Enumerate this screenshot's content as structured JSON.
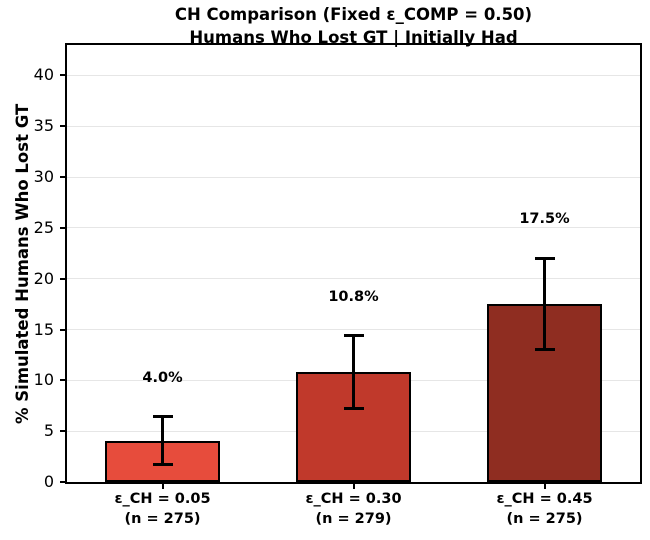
{
  "title": {
    "line1": "CH Comparison (Fixed ε_COMP = 0.50)",
    "line2": "Humans Who Lost GT | Initially Had"
  },
  "chart_data": {
    "type": "bar",
    "title": "CH Comparison (Fixed ε_COMP = 0.50)\nHumans Who Lost GT | Initially Had",
    "xlabel": "",
    "ylabel": "% Simulated Humans Who Lost GT",
    "ylim": [
      0,
      43
    ],
    "yticks": [
      0,
      5,
      10,
      15,
      20,
      25,
      30,
      35,
      40
    ],
    "grid": "horizontal",
    "grid_color": "#e6e6e6",
    "categories": [
      {
        "line1": "ε_CH = 0.05",
        "line2": "(n = 275)"
      },
      {
        "line1": "ε_CH = 0.30",
        "line2": "(n = 279)"
      },
      {
        "line1": "ε_CH = 0.45",
        "line2": "(n = 275)"
      }
    ],
    "values": [
      4.0,
      10.8,
      17.5
    ],
    "value_labels": [
      "4.0%",
      "10.8%",
      "17.5%"
    ],
    "error_low": [
      1.7,
      7.2,
      13.0
    ],
    "error_high": [
      6.4,
      14.4,
      22.0
    ],
    "bar_colors": [
      "#e74c3c",
      "#c0392b",
      "#8f2d21"
    ],
    "bar_edge_color": "#000000",
    "error_color": "#000000"
  }
}
